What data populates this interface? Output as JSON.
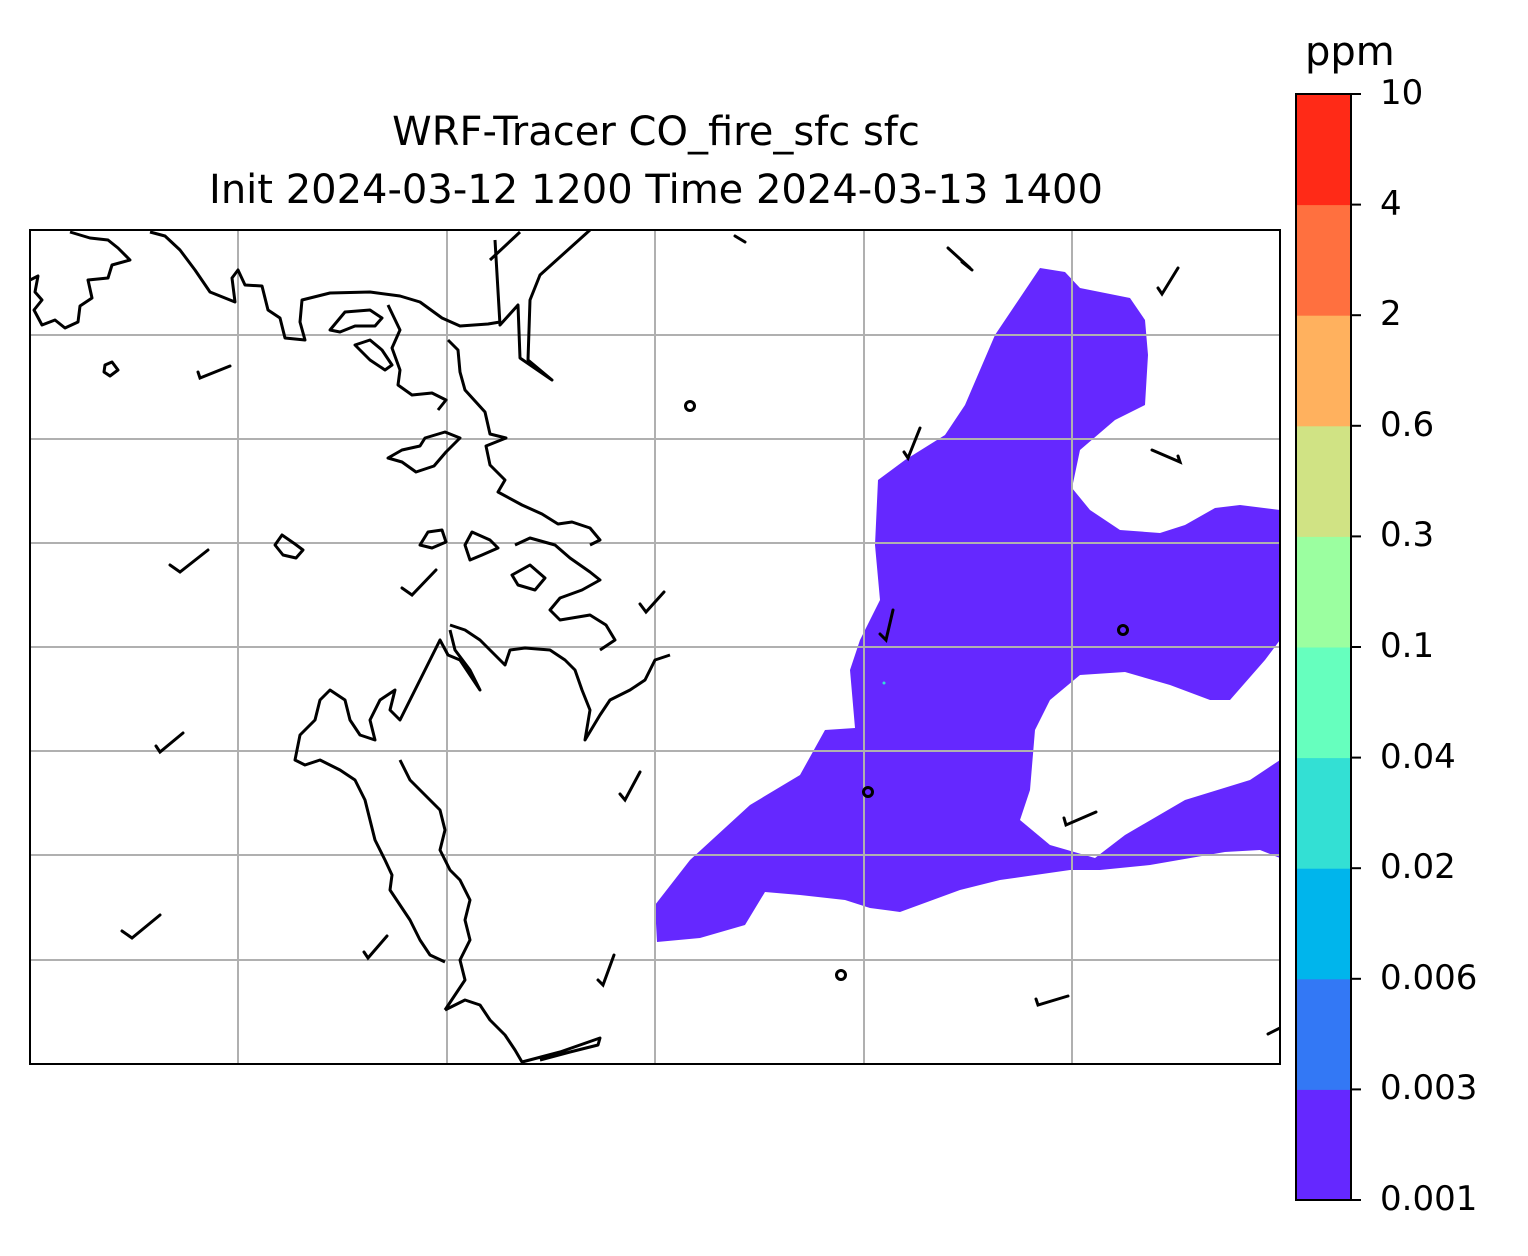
{
  "title": {
    "line1": "WRF-Tracer CO_fire_sfc sfc",
    "line2": "Init 2024-03-12 1200 Time 2024-03-13 1400"
  },
  "colorbar": {
    "unit": "ppm",
    "levels": [
      "0.001",
      "0.003",
      "0.006",
      "0.02",
      "0.04",
      "0.1",
      "0.3",
      "0.6",
      "2",
      "4",
      "10"
    ],
    "colors": [
      "#6528ff",
      "#3378f5",
      "#00b5ec",
      "#33e0d4",
      "#66ffbe",
      "#9bffa0",
      "#d0e384",
      "#ffb15e",
      "#ff703f",
      "#ff2a17"
    ]
  },
  "map": {
    "field": "CO_fire_sfc",
    "plume_color": "#6528ff",
    "gridline_color": "#b0b0b0",
    "coastline_color": "#000000"
  }
}
